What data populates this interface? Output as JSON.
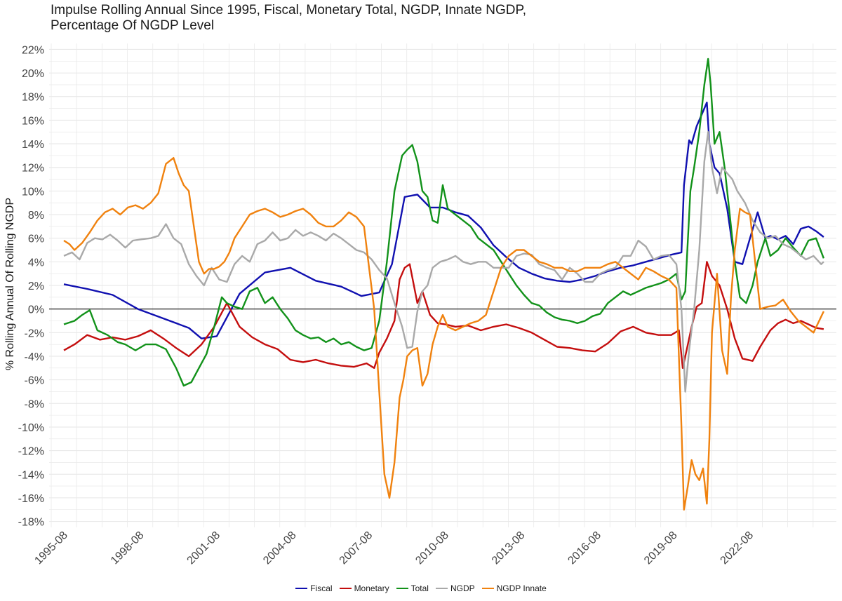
{
  "chart_data": {
    "type": "line",
    "title": "Impulse Rolling Annual Since 1995, Fiscal, Monetary Total, NGDP, Innate NGDP,\nPercentage Of NGDP Level",
    "xlabel": "",
    "ylabel": "% Rolling Annual Of Rolling NGDP",
    "ylim": [
      -18.5,
      22.5
    ],
    "xlim": [
      1995.0,
      2026.0
    ],
    "yticks": [
      22,
      20,
      18,
      16,
      14,
      12,
      10,
      8,
      6,
      4,
      2,
      0,
      -2,
      -4,
      -6,
      -8,
      -10,
      -12,
      -14,
      -16,
      -18
    ],
    "ytick_labels": [
      "22%",
      "20%",
      "18%",
      "16%",
      "14%",
      "12%",
      "10%",
      "8%",
      "6%",
      "4%",
      "2%",
      "0%",
      "-2%",
      "-4%",
      "-6%",
      "-8%",
      "-10%",
      "-12%",
      "-14%",
      "-16%",
      "-18%"
    ],
    "xticks": [
      1995.583,
      1998.583,
      2001.583,
      2004.583,
      2007.583,
      2010.583,
      2013.583,
      2016.583,
      2019.583,
      2022.583
    ],
    "xtick_labels": [
      "1995-08",
      "1998-08",
      "2001-08",
      "2004-08",
      "2007-08",
      "2010-08",
      "2013-08",
      "2016-08",
      "2019-08",
      "2022-08"
    ],
    "hline": 0,
    "grid": true,
    "legend_position": "bottom",
    "series": [
      {
        "name": "Fiscal",
        "color": "#1010b0",
        "x": [
          1995.58,
          1996.5,
          1997.5,
          1998.5,
          1999.5,
          2000.5,
          2001.0,
          2001.6,
          2002.5,
          2003.5,
          2004.5,
          2005.5,
          2006.5,
          2007.3,
          2008.0,
          2008.5,
          2009.0,
          2009.5,
          2010.0,
          2010.5,
          2011.0,
          2011.5,
          2012.0,
          2012.5,
          2013.0,
          2013.5,
          2014.0,
          2014.5,
          2015.0,
          2015.5,
          2016.0,
          2016.5,
          2017.0,
          2017.5,
          2018.0,
          2018.5,
          2019.0,
          2019.5,
          2019.9,
          2020.0,
          2020.2,
          2020.3,
          2020.5,
          2020.7,
          2020.9,
          2021.0,
          2021.2,
          2021.4,
          2021.7,
          2022.0,
          2022.3,
          2022.6,
          2022.9,
          2023.2,
          2023.4,
          2023.7,
          2024.0,
          2024.3,
          2024.6,
          2024.9,
          2025.2,
          2025.5
        ],
        "values": [
          2.1,
          1.7,
          1.2,
          0,
          -0.8,
          -1.6,
          -2.5,
          -2.3,
          1.3,
          3.1,
          3.5,
          2.4,
          1.9,
          1.1,
          1.4,
          3.8,
          9.5,
          9.7,
          8.6,
          8.6,
          8.2,
          7.9,
          6.9,
          5.4,
          4.4,
          3.5,
          3.0,
          2.6,
          2.4,
          2.3,
          2.5,
          2.8,
          3.2,
          3.5,
          3.7,
          4.0,
          4.3,
          4.6,
          4.8,
          10.5,
          14.3,
          14.0,
          15.5,
          16.5,
          17.5,
          14.0,
          12.0,
          11.5,
          8.5,
          4.0,
          3.8,
          6.0,
          8.2,
          6.0,
          6.2,
          5.9,
          6.2,
          5.5,
          6.8,
          7.0,
          6.6,
          6.1
        ]
      },
      {
        "name": "Monetary",
        "color": "#c40e0e",
        "x": [
          1995.58,
          1996.0,
          1996.5,
          1997.0,
          1997.5,
          1998.0,
          1998.5,
          1999.0,
          1999.5,
          2000.0,
          2000.5,
          2001.0,
          2001.5,
          2002.0,
          2002.5,
          2003.0,
          2003.5,
          2004.0,
          2004.5,
          2005.0,
          2005.5,
          2006.0,
          2006.5,
          2007.0,
          2007.5,
          2007.8,
          2008.0,
          2008.3,
          2008.6,
          2008.8,
          2009.0,
          2009.2,
          2009.5,
          2009.7,
          2010.0,
          2010.3,
          2010.6,
          2011.0,
          2011.5,
          2012.0,
          2012.5,
          2013.0,
          2013.5,
          2014.0,
          2014.5,
          2015.0,
          2015.5,
          2016.0,
          2016.5,
          2017.0,
          2017.5,
          2018.0,
          2018.5,
          2019.0,
          2019.5,
          2019.8,
          2019.95,
          2020.1,
          2020.3,
          2020.5,
          2020.7,
          2020.9,
          2021.1,
          2021.4,
          2021.7,
          2022.0,
          2022.3,
          2022.7,
          2023.0,
          2023.4,
          2023.7,
          2024.0,
          2024.3,
          2024.6,
          2024.9,
          2025.2,
          2025.5
        ],
        "values": [
          -3.5,
          -3.0,
          -2.2,
          -2.6,
          -2.4,
          -2.6,
          -2.3,
          -1.8,
          -2.5,
          -3.3,
          -4.0,
          -3.0,
          -1.5,
          0.5,
          -1.5,
          -2.4,
          -3.0,
          -3.4,
          -4.3,
          -4.5,
          -4.3,
          -4.6,
          -4.8,
          -4.9,
          -4.6,
          -5.0,
          -3.7,
          -2.5,
          -1.0,
          2.5,
          3.5,
          3.8,
          0.5,
          1.5,
          -0.5,
          -1.2,
          -1.3,
          -1.5,
          -1.4,
          -1.8,
          -1.5,
          -1.3,
          -1.6,
          -2.0,
          -2.6,
          -3.2,
          -3.3,
          -3.5,
          -3.6,
          -2.9,
          -1.9,
          -1.5,
          -2.0,
          -2.2,
          -2.2,
          -1.8,
          -5.0,
          -3.5,
          -1.5,
          0.2,
          0.5,
          4.0,
          2.8,
          2.0,
          0,
          -2.5,
          -4.2,
          -4.4,
          -3.2,
          -1.8,
          -1.2,
          -0.9,
          -1.2,
          -1.0,
          -1.3,
          -1.6,
          -1.7
        ]
      },
      {
        "name": "Total",
        "color": "#12921a",
        "x": [
          1995.58,
          1996.0,
          1996.3,
          1996.6,
          1996.9,
          1997.3,
          1997.7,
          1998.0,
          1998.4,
          1998.8,
          1999.2,
          1999.6,
          2000.0,
          2000.3,
          2000.6,
          2000.9,
          2001.2,
          2001.5,
          2001.8,
          2002.0,
          2002.3,
          2002.6,
          2002.9,
          2003.2,
          2003.5,
          2003.8,
          2004.1,
          2004.4,
          2004.7,
          2005.0,
          2005.3,
          2005.6,
          2005.9,
          2006.2,
          2006.5,
          2006.8,
          2007.1,
          2007.4,
          2007.7,
          2008.0,
          2008.3,
          2008.6,
          2008.9,
          2009.1,
          2009.3,
          2009.5,
          2009.7,
          2009.9,
          2010.1,
          2010.3,
          2010.5,
          2010.7,
          2011.0,
          2011.3,
          2011.6,
          2011.9,
          2012.2,
          2012.5,
          2012.8,
          2013.1,
          2013.4,
          2013.7,
          2014.0,
          2014.3,
          2014.6,
          2014.9,
          2015.2,
          2015.5,
          2015.8,
          2016.1,
          2016.4,
          2016.7,
          2017.0,
          2017.3,
          2017.6,
          2017.9,
          2018.2,
          2018.5,
          2018.8,
          2019.1,
          2019.4,
          2019.7,
          2019.9,
          2020.05,
          2020.25,
          2020.4,
          2020.6,
          2020.8,
          2020.95,
          2021.05,
          2021.2,
          2021.4,
          2021.6,
          2021.8,
          2022.0,
          2022.2,
          2022.45,
          2022.7,
          2022.9,
          2023.2,
          2023.4,
          2023.7,
          2024.0,
          2024.3,
          2024.6,
          2024.9,
          2025.2,
          2025.5
        ],
        "values": [
          -1.3,
          -1.0,
          -0.5,
          -0.1,
          -1.8,
          -2.2,
          -2.8,
          -3.0,
          -3.5,
          -3.0,
          -3.0,
          -3.4,
          -5.0,
          -6.5,
          -6.2,
          -5.0,
          -3.8,
          -1.5,
          1.0,
          0.5,
          0.2,
          0.0,
          1.5,
          1.8,
          0.5,
          1.0,
          0.0,
          -0.8,
          -1.8,
          -2.2,
          -2.5,
          -2.4,
          -2.8,
          -2.5,
          -3.0,
          -2.8,
          -3.2,
          -3.5,
          -3.3,
          -1.0,
          4.0,
          10.0,
          13.0,
          13.5,
          13.9,
          12.5,
          10.0,
          9.5,
          7.5,
          7.3,
          10.5,
          8.5,
          8.0,
          7.5,
          7.0,
          6.0,
          5.5,
          5.0,
          4.0,
          3.0,
          2.0,
          1.2,
          0.5,
          0.3,
          -0.3,
          -0.7,
          -0.9,
          -1.0,
          -1.2,
          -1.0,
          -0.6,
          -0.4,
          0.5,
          1.0,
          1.5,
          1.2,
          1.5,
          1.8,
          2.0,
          2.2,
          2.5,
          3.0,
          0.8,
          1.5,
          10.0,
          12.0,
          15.0,
          19.0,
          21.2,
          19.0,
          14.0,
          15.0,
          12.0,
          8.0,
          4.0,
          1.0,
          0.5,
          2.0,
          4.0,
          6.0,
          4.5,
          5.0,
          6.0,
          5.2,
          4.5,
          5.8,
          6.0,
          4.3
        ]
      },
      {
        "name": "NGDP",
        "color": "#a9a9a9",
        "x": [
          1995.58,
          1995.9,
          1996.2,
          1996.5,
          1996.8,
          1997.1,
          1997.4,
          1997.7,
          1998.0,
          1998.3,
          1998.6,
          1999.0,
          1999.3,
          1999.6,
          1999.9,
          2000.2,
          2000.5,
          2000.8,
          2001.1,
          2001.4,
          2001.7,
          2002.0,
          2002.3,
          2002.6,
          2002.9,
          2003.2,
          2003.5,
          2003.8,
          2004.1,
          2004.4,
          2004.7,
          2005.0,
          2005.3,
          2005.6,
          2005.9,
          2006.2,
          2006.5,
          2006.8,
          2007.1,
          2007.4,
          2007.7,
          2008.0,
          2008.3,
          2008.6,
          2008.9,
          2009.1,
          2009.3,
          2009.5,
          2009.7,
          2009.9,
          2010.1,
          2010.4,
          2010.7,
          2011.0,
          2011.3,
          2011.6,
          2011.9,
          2012.2,
          2012.5,
          2012.8,
          2013.1,
          2013.4,
          2013.7,
          2014.0,
          2014.3,
          2014.6,
          2014.9,
          2015.2,
          2015.5,
          2015.8,
          2016.1,
          2016.4,
          2016.7,
          2017.0,
          2017.3,
          2017.6,
          2017.9,
          2018.2,
          2018.5,
          2018.8,
          2019.1,
          2019.4,
          2019.7,
          2019.9,
          2020.05,
          2020.2,
          2020.4,
          2020.6,
          2020.8,
          2020.95,
          2021.1,
          2021.3,
          2021.5,
          2021.7,
          2021.9,
          2022.1,
          2022.4,
          2022.7,
          2023.0,
          2023.3,
          2023.6,
          2023.9,
          2024.2,
          2024.5,
          2024.8,
          2025.1,
          2025.4,
          2025.5
        ],
        "values": [
          4.5,
          4.8,
          4.2,
          5.6,
          6.0,
          5.9,
          6.3,
          5.8,
          5.2,
          5.8,
          5.9,
          6.0,
          6.2,
          7.2,
          6.0,
          5.5,
          3.8,
          2.8,
          2.0,
          3.5,
          2.5,
          2.3,
          3.8,
          4.5,
          4.0,
          5.5,
          5.8,
          6.5,
          5.8,
          6.0,
          6.7,
          6.2,
          6.5,
          6.2,
          5.8,
          6.4,
          6.0,
          5.5,
          5.0,
          4.8,
          4.2,
          3.3,
          2.6,
          0.5,
          -1.5,
          -3.3,
          -3.2,
          -0.2,
          1.5,
          2.0,
          3.5,
          4.0,
          4.2,
          4.5,
          4.0,
          3.8,
          4.0,
          4.0,
          3.5,
          3.5,
          3.5,
          4.5,
          4.7,
          4.6,
          3.8,
          3.5,
          3.3,
          2.5,
          3.5,
          3.0,
          2.3,
          2.3,
          3.0,
          3.3,
          3.5,
          4.5,
          4.5,
          5.8,
          5.3,
          4.2,
          4.5,
          4.6,
          3.8,
          0,
          -7.0,
          -3.5,
          0.0,
          5.0,
          12.5,
          15.0,
          12.0,
          9.8,
          12.0,
          11.5,
          11.0,
          10.0,
          9.0,
          7.5,
          6.5,
          6.0,
          6.2,
          5.5,
          5.2,
          4.7,
          4.2,
          4.5,
          3.8,
          4.0
        ]
      },
      {
        "name": "NGDP Innate",
        "color": "#f0820f",
        "x": [
          1995.58,
          1995.8,
          1996.0,
          1996.3,
          1996.6,
          1996.9,
          1997.2,
          1997.5,
          1997.8,
          1998.1,
          1998.4,
          1998.7,
          1999.0,
          1999.3,
          1999.6,
          1999.9,
          2000.1,
          2000.3,
          2000.5,
          2000.7,
          2000.9,
          2001.1,
          2001.3,
          2001.5,
          2001.7,
          2001.9,
          2002.1,
          2002.3,
          2002.6,
          2002.9,
          2003.2,
          2003.5,
          2003.8,
          2004.1,
          2004.4,
          2004.7,
          2005.0,
          2005.3,
          2005.6,
          2005.9,
          2006.2,
          2006.5,
          2006.8,
          2007.1,
          2007.4,
          2007.6,
          2007.8,
          2008.0,
          2008.2,
          2008.4,
          2008.6,
          2008.8,
          2008.95,
          2009.1,
          2009.3,
          2009.5,
          2009.7,
          2009.9,
          2010.1,
          2010.3,
          2010.5,
          2010.7,
          2011.0,
          2011.3,
          2011.6,
          2011.9,
          2012.2,
          2012.5,
          2012.8,
          2013.1,
          2013.4,
          2013.7,
          2014.0,
          2014.3,
          2014.6,
          2014.9,
          2015.2,
          2015.5,
          2015.8,
          2016.1,
          2016.4,
          2016.7,
          2017.0,
          2017.3,
          2017.6,
          2017.9,
          2018.2,
          2018.5,
          2018.8,
          2019.1,
          2019.4,
          2019.7,
          2019.9,
          2020.0,
          2020.15,
          2020.3,
          2020.45,
          2020.6,
          2020.75,
          2020.9,
          2021.0,
          2021.1,
          2021.3,
          2021.5,
          2021.7,
          2021.85,
          2022.0,
          2022.2,
          2022.4,
          2022.6,
          2022.8,
          2023.0,
          2023.3,
          2023.6,
          2023.9,
          2024.2,
          2024.5,
          2024.8,
          2025.1,
          2025.5
        ],
        "values": [
          5.8,
          5.5,
          5.0,
          5.6,
          6.5,
          7.5,
          8.2,
          8.5,
          8.0,
          8.6,
          8.8,
          8.5,
          9.0,
          9.8,
          12.3,
          12.8,
          11.5,
          10.5,
          10.0,
          7.0,
          4.0,
          3.0,
          3.4,
          3.4,
          3.6,
          4.0,
          4.8,
          6.0,
          7.0,
          8.0,
          8.3,
          8.5,
          8.2,
          7.8,
          8.0,
          8.3,
          8.5,
          8.0,
          7.3,
          7.0,
          7.0,
          7.5,
          8.2,
          7.8,
          7.0,
          3.5,
          0,
          -7.0,
          -14.0,
          -16.0,
          -13.0,
          -7.5,
          -6.0,
          -4.0,
          -3.5,
          -3.3,
          -6.5,
          -5.5,
          -3.0,
          -1.5,
          -0.5,
          -1.5,
          -1.8,
          -1.5,
          -1.2,
          -1.0,
          -0.5,
          1.5,
          3.5,
          4.5,
          5.0,
          5.0,
          4.5,
          4.0,
          3.8,
          3.5,
          3.5,
          3.2,
          3.2,
          3.5,
          3.5,
          3.5,
          3.8,
          4.0,
          3.5,
          3.0,
          2.5,
          3.5,
          3.2,
          2.8,
          2.5,
          1.8,
          -10.0,
          -17.0,
          -15.0,
          -12.8,
          -14.0,
          -14.5,
          -13.5,
          -16.5,
          -11.0,
          -2.0,
          3.0,
          -3.5,
          -5.5,
          1.0,
          5.0,
          8.5,
          8.2,
          8.0,
          4.0,
          0.0,
          0.2,
          0.3,
          0.8,
          -0.2,
          -1.0,
          -1.5,
          -2.0,
          -0.2
        ]
      }
    ]
  }
}
